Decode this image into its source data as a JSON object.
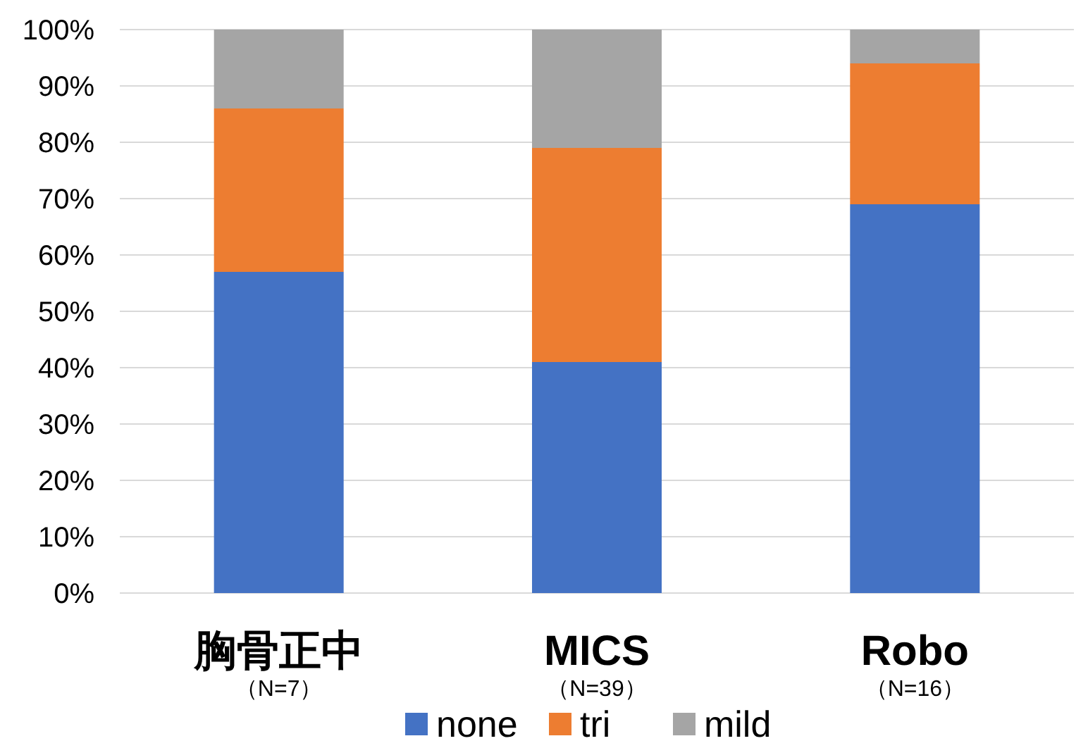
{
  "chart_data": {
    "type": "bar",
    "stacked": true,
    "categories": [
      "胸骨正中（N=7）",
      "MICS（N=39）",
      "Robo（N=16）"
    ],
    "series": [
      {
        "name": "none",
        "color": "#4472c4",
        "values": [
          57,
          41,
          69
        ]
      },
      {
        "name": "tri",
        "color": "#ed7d31",
        "values": [
          29,
          38,
          25
        ]
      },
      {
        "name": "mild",
        "color": "#a5a5a5",
        "values": [
          14,
          21,
          6
        ]
      }
    ],
    "ylim": [
      0,
      100
    ],
    "yticks": [
      {
        "value": 0,
        "label": "0%"
      },
      {
        "value": 10,
        "label": "10%"
      },
      {
        "value": 20,
        "label": "20%"
      },
      {
        "value": 30,
        "label": "30%"
      },
      {
        "value": 40,
        "label": "40%"
      },
      {
        "value": 50,
        "label": "50%"
      },
      {
        "value": 60,
        "label": "60%"
      },
      {
        "value": 70,
        "label": "70%"
      },
      {
        "value": 80,
        "label": "80%"
      },
      {
        "value": 90,
        "label": "90%"
      },
      {
        "value": 100,
        "label": "100%"
      }
    ],
    "grid": "y",
    "legend": "bottom"
  }
}
